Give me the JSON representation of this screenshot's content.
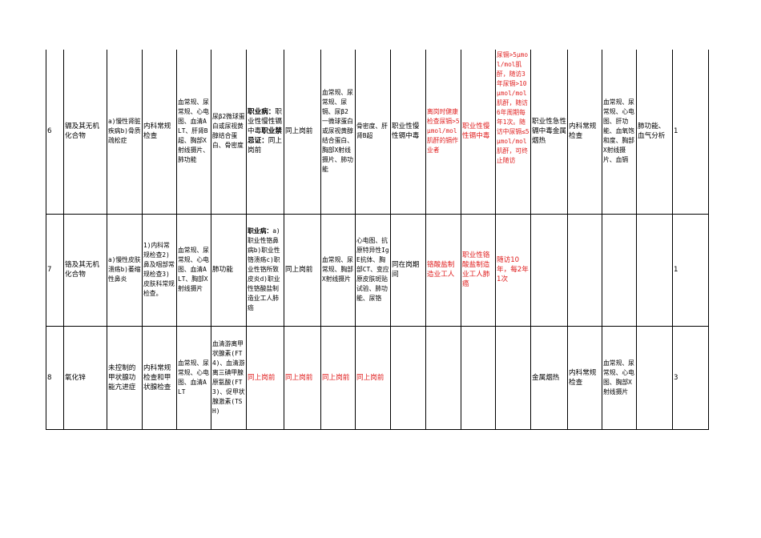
{
  "colors": {
    "warning_text": "#e02020",
    "border": "#000000"
  },
  "rows": [
    {
      "no": "6",
      "hazard": "镉及其无机化合物",
      "target_disease": "a)慢性肾脏疾病b)骨质疏松症",
      "pre_items": "内科常规检查",
      "pre_basic": "血常规、尿常规、心电图、血清ALT、肝肾B超、胸部X射线摄片、肺功能",
      "pre_choice": "尿β2微球蛋白或尿视黄醇结合蛋白、骨密度",
      "contraindication_label1": "职业病：",
      "contraindication_text1": "职业性慢性镉中毒",
      "contraindication_label2": "职业禁忌证：",
      "contraindication_text2": "同上岗前",
      "on_duty_target": "同上岗前",
      "on_duty_basic": "血常规、尿常规、尿镉、尿β2一微球蛋白或尿视黄醇结合蛋白、胸部X射线摄片、肺功能",
      "on_duty_choice": "骨密度、肝肾B超",
      "on_duty_disease": "职业性慢性镉中毒",
      "leave_items": "离岗时健康检查尿镉>5μmol/mol肌酐的镉作业者",
      "leave_disease": "职业性慢性镉中毒",
      "follow_cycle": "尿镉>5μmol/mol肌酐，随访3年尿镉>10μmol/mol肌酐，随访6年周期每年1次。随访中尿镉≤5μmol/mol肌酐，可终止随访",
      "emerg_disease": "职业性急性镉中毒金属烟热",
      "emerg_items": "内科常规检查",
      "emerg_basic": "血常规、尿常规、心电图、肝功能、血氧饱和度、胸部X射线摄片、血镉",
      "emerg_choice": "肺功能、血气分析",
      "count": "1"
    },
    {
      "no": "7",
      "hazard": "铬及其无机化合物",
      "target_disease": "a)慢性皮肤溃疡b)萎缩性鼻炎",
      "pre_items": "1)内科常规检查2)鼻及咽部常规检查3)皮肤科常规检查。",
      "pre_basic": "血常规、尿常规、心电图、血清ALT、胸部X射线摄片",
      "pre_choice": "肺功能",
      "contraindication_label1": "职业病：",
      "contraindication_text1": "a)职业性铬鼻病b)职业性铬溃疡c)职业性铬所致皮炎d)职业性铬酸盐制造业工人肺癌",
      "contraindication_label2": "",
      "contraindication_text2": "",
      "on_duty_target": "同上岗前",
      "on_duty_basic": "血常规、尿常规、胸部X射线摄片",
      "on_duty_choice": "心电图、抗原特异性IgE抗体、胸部CT、变应原皮肤斑贴试验、肺功能、尿铬",
      "on_duty_disease": "同在岗期间",
      "leave_items": "铬酸盐制造业工人",
      "leave_disease": "职业性铬酸盐制造业工人肺癌",
      "follow_cycle": "随访10年，每2年1次",
      "emerg_disease": "",
      "emerg_items": "",
      "emerg_basic": "",
      "emerg_choice": "",
      "count": "1"
    },
    {
      "no": "8",
      "hazard": "氧化锌",
      "target_disease": "未控制的甲状腺功能亢进症",
      "pre_items": "内科常规检查和甲状腺检查",
      "pre_basic": "血常规、尿常规、心电图、血清ALT",
      "pre_choice": "血清游离甲状腺素(FT4)、血清游离三碘甲腺原氨酸(FT3)、促甲状腺激素(TSH)",
      "contraindication_label1": "",
      "contraindication_text1": "同上岗前",
      "contraindication_label2": "",
      "contraindication_text2": "",
      "on_duty_target": "同上岗前",
      "on_duty_basic": "同上岗前",
      "on_duty_choice": "同上岗前",
      "on_duty_disease": "",
      "leave_items": "",
      "leave_disease": "",
      "follow_cycle": "",
      "emerg_disease": "金属烟热",
      "emerg_items": "内科常规检查",
      "emerg_basic": "血常规、尿常规、心电图、胸部X射线摄片",
      "emerg_choice": "",
      "count": "3"
    }
  ]
}
